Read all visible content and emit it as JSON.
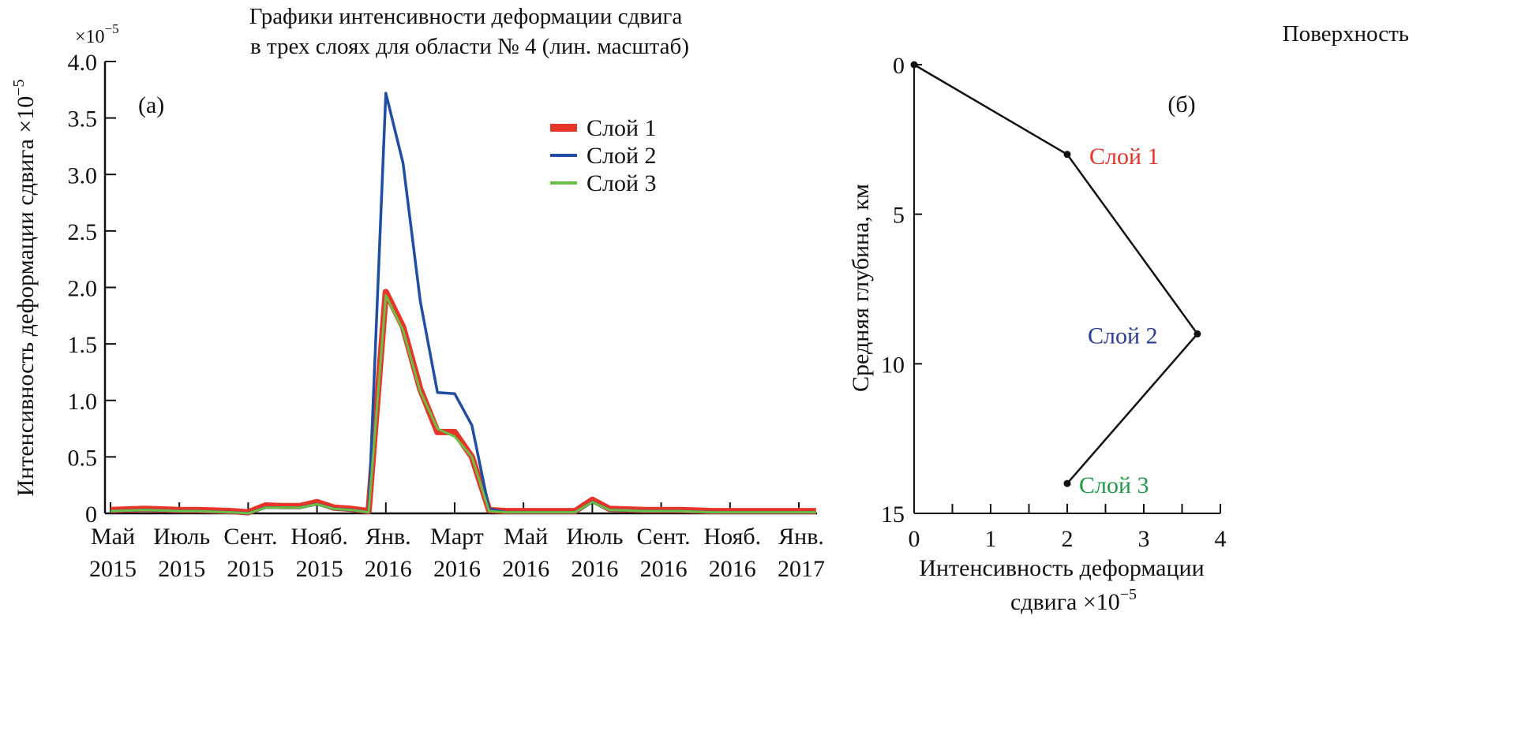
{
  "chart_data": [
    {
      "type": "line",
      "panel_label": "(а)",
      "title_line1": "Графики интенсивности деформации сдвига",
      "title_line2": "в трех слоях для области № 4 (лин.  масштаб)",
      "ylabel": "Интенсивность деформации сдвига ×10",
      "ylabel_exp": "−5",
      "y_multiplier": "×10",
      "y_multiplier_exp": "−5",
      "xlabel": "",
      "ylim": [
        0,
        4.0
      ],
      "y_ticks": [
        "0",
        "0.5",
        "1.0",
        "1.5",
        "2.0",
        "2.5",
        "3.0",
        "3.5",
        "4.0"
      ],
      "x_ticks": [
        {
          "month": "Май",
          "year": "2015",
          "date": "2015-05"
        },
        {
          "month": "Июль",
          "year": "2015",
          "date": "2015-07"
        },
        {
          "month": "Сент.",
          "year": "2015",
          "date": "2015-09"
        },
        {
          "month": "Нояб.",
          "year": "2015",
          "date": "2015-11"
        },
        {
          "month": "Янв.",
          "year": "2016",
          "date": "2016-01"
        },
        {
          "month": "Март",
          "year": "2016",
          "date": "2016-03"
        },
        {
          "month": "Май",
          "year": "2016",
          "date": "2016-05"
        },
        {
          "month": "Июль",
          "year": "2016",
          "date": "2016-07"
        },
        {
          "month": "Сент.",
          "year": "2016",
          "date": "2016-09"
        },
        {
          "month": "Нояб.",
          "year": "2016",
          "date": "2016-11"
        },
        {
          "month": "Янв.",
          "year": "2017",
          "date": "2017-01"
        }
      ],
      "x": [
        "2015-05-01",
        "2015-05-16",
        "2015-06-01",
        "2015-06-16",
        "2015-07-01",
        "2015-07-16",
        "2015-08-01",
        "2015-08-16",
        "2015-09-01",
        "2015-09-16",
        "2015-10-01",
        "2015-10-16",
        "2015-11-01",
        "2015-11-16",
        "2015-12-01",
        "2015-12-16",
        "2016-01-01",
        "2016-01-16",
        "2016-02-01",
        "2016-02-16",
        "2016-03-01",
        "2016-03-16",
        "2016-04-01",
        "2016-04-16",
        "2016-05-01",
        "2016-05-16",
        "2016-06-01",
        "2016-06-16",
        "2016-07-01",
        "2016-07-16",
        "2016-08-01",
        "2016-08-16",
        "2016-09-01",
        "2016-09-16",
        "2016-10-01",
        "2016-10-16",
        "2016-11-01",
        "2016-11-16",
        "2016-12-01",
        "2016-12-16",
        "2017-01-01",
        "2017-01-16"
      ],
      "series": [
        {
          "name": "Слой 1",
          "color": "#e8352a",
          "values": [
            0.03,
            0.035,
            0.04,
            0.035,
            0.03,
            0.03,
            0.025,
            0.02,
            0.01,
            0.07,
            0.065,
            0.065,
            0.1,
            0.05,
            0.04,
            0.02,
            1.96,
            1.65,
            1.1,
            0.72,
            0.72,
            0.5,
            0.03,
            0.02,
            0.02,
            0.02,
            0.02,
            0.02,
            0.12,
            0.04,
            0.035,
            0.03,
            0.03,
            0.03,
            0.025,
            0.02,
            0.02,
            0.02,
            0.02,
            0.02,
            0.02,
            0.02
          ]
        },
        {
          "name": "Слой 2",
          "color": "#1f4ea3",
          "values": [
            0.02,
            0.025,
            0.03,
            0.025,
            0.02,
            0.02,
            0.015,
            0.01,
            0.0,
            0.05,
            0.05,
            0.05,
            0.08,
            0.04,
            0.03,
            0.01,
            3.72,
            3.1,
            1.88,
            1.07,
            1.06,
            0.78,
            0.04,
            0.01,
            0.01,
            0.01,
            0.01,
            0.01,
            0.1,
            0.03,
            0.025,
            0.02,
            0.02,
            0.02,
            0.015,
            0.01,
            0.01,
            0.01,
            0.01,
            0.01,
            0.01,
            0.01
          ]
        },
        {
          "name": "Слой 3",
          "color": "#6cbf45",
          "values": [
            0.02,
            0.025,
            0.03,
            0.025,
            0.02,
            0.02,
            0.015,
            0.01,
            0.0,
            0.05,
            0.05,
            0.05,
            0.08,
            0.04,
            0.03,
            0.01,
            1.93,
            1.62,
            1.08,
            0.75,
            0.68,
            0.5,
            0.02,
            0.01,
            0.01,
            0.01,
            0.01,
            0.01,
            0.1,
            0.03,
            0.025,
            0.02,
            0.02,
            0.02,
            0.015,
            0.01,
            0.01,
            0.01,
            0.01,
            0.01,
            0.01,
            0.01
          ]
        }
      ],
      "grid": false,
      "legend": "top-right"
    },
    {
      "type": "line",
      "panel_label": "(б)",
      "top_label": "Поверхность",
      "ylabel": "Средняя глубина, км",
      "xlabel_line1": "Интенсивность деформации",
      "xlabel_line2": "сдвига ×10",
      "xlabel_exp": "−5",
      "xlim": [
        0,
        4
      ],
      "ylim": [
        15,
        0
      ],
      "x_ticks": [
        "0",
        "1",
        "2",
        "3",
        "4"
      ],
      "y_ticks": [
        "0",
        "5",
        "10",
        "15"
      ],
      "points": [
        {
          "x": 0,
          "y": 0,
          "label": ""
        },
        {
          "x": 2,
          "y": 3,
          "label": "Слой 1",
          "color": "#e8352a"
        },
        {
          "x": 3.7,
          "y": 9,
          "label": "Слой 2",
          "color": "#2b3d94"
        },
        {
          "x": 2,
          "y": 14,
          "label": "Слой 3",
          "color": "#1f9a48"
        }
      ],
      "grid": false
    }
  ]
}
